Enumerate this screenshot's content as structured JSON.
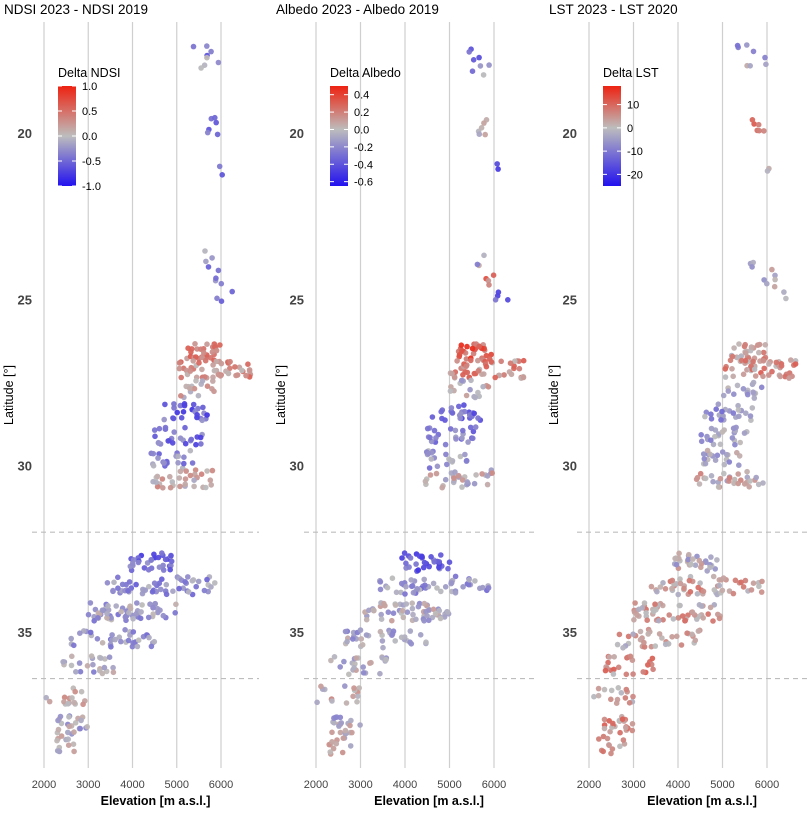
{
  "chart_data": [
    {
      "type": "scatter",
      "title": "NDSI 2023 - NDSI 2019",
      "xlabel": "Elevation [m a.s.l.]",
      "ylabel": "Latitude [°]",
      "x_ticks": [
        "2000",
        "3000",
        "4000",
        "5000",
        "6000"
      ],
      "y_ticks": [
        "20",
        "25",
        "30",
        "35"
      ],
      "xlim": [
        1900,
        6800
      ],
      "ylim_reversed": [
        16.5,
        39.0
      ],
      "reference_lines_latitude": [
        32.0,
        36.4
      ],
      "legend": {
        "title": "Delta NDSI",
        "placement": "top-left",
        "labels": [
          "1.0",
          "0.5",
          "0.0",
          "-0.5",
          "-1.0"
        ],
        "label_values": [
          1.0,
          0.5,
          0.0,
          -0.5,
          -1.0
        ],
        "range": [
          -1.0,
          1.0
        ]
      },
      "colorscale": [
        "#2211ee",
        "#bdbdbd",
        "#ee2211"
      ],
      "clusters": [
        {
          "lat": 17.6,
          "elev_min": 5300,
          "elev_max": 5800,
          "mean": -0.5,
          "n": 4
        },
        {
          "lat": 18.0,
          "elev_min": 5500,
          "elev_max": 6000,
          "mean": -0.1,
          "n": 4
        },
        {
          "lat": 19.8,
          "elev_min": 5650,
          "elev_max": 5950,
          "mean": -0.6,
          "n": 6
        },
        {
          "lat": 21.2,
          "elev_min": 5950,
          "elev_max": 6100,
          "mean": -0.6,
          "n": 2
        },
        {
          "lat": 23.8,
          "elev_min": 5600,
          "elev_max": 5800,
          "mean": -0.3,
          "n": 3
        },
        {
          "lat": 24.3,
          "elev_min": 5700,
          "elev_max": 6200,
          "mean": -0.3,
          "n": 4
        },
        {
          "lat": 24.8,
          "elev_min": 5900,
          "elev_max": 6450,
          "mean": -0.4,
          "n": 4
        },
        {
          "lat": 26.6,
          "elev_min": 5200,
          "elev_max": 6000,
          "mean": 0.45,
          "n": 30
        },
        {
          "lat": 27.1,
          "elev_min": 5000,
          "elev_max": 6700,
          "mean": 0.3,
          "n": 48
        },
        {
          "lat": 27.7,
          "elev_min": 5000,
          "elev_max": 5900,
          "mean": 0.1,
          "n": 16
        },
        {
          "lat": 28.4,
          "elev_min": 4600,
          "elev_max": 5700,
          "mean": -0.5,
          "n": 24
        },
        {
          "lat": 29.1,
          "elev_min": 4500,
          "elev_max": 5600,
          "mean": -0.5,
          "n": 24
        },
        {
          "lat": 29.8,
          "elev_min": 4400,
          "elev_max": 5400,
          "mean": -0.3,
          "n": 20
        },
        {
          "lat": 30.4,
          "elev_min": 4400,
          "elev_max": 6000,
          "mean": 0.15,
          "n": 32
        },
        {
          "lat": 32.9,
          "elev_min": 3900,
          "elev_max": 5000,
          "mean": -0.5,
          "n": 32
        },
        {
          "lat": 33.6,
          "elev_min": 3400,
          "elev_max": 5900,
          "mean": -0.3,
          "n": 56
        },
        {
          "lat": 34.4,
          "elev_min": 3000,
          "elev_max": 5000,
          "mean": -0.15,
          "n": 60
        },
        {
          "lat": 35.2,
          "elev_min": 2600,
          "elev_max": 4500,
          "mean": -0.2,
          "n": 36
        },
        {
          "lat": 36.0,
          "elev_min": 2300,
          "elev_max": 3600,
          "mean": -0.1,
          "n": 24
        },
        {
          "lat": 36.9,
          "elev_min": 2000,
          "elev_max": 3000,
          "mean": 0.05,
          "n": 16
        },
        {
          "lat": 37.8,
          "elev_min": 2300,
          "elev_max": 3000,
          "mean": -0.1,
          "n": 22
        },
        {
          "lat": 38.4,
          "elev_min": 2200,
          "elev_max": 2800,
          "mean": 0.0,
          "n": 12
        }
      ]
    },
    {
      "type": "scatter",
      "title": "Albedo 2023 - Albedo 2019",
      "xlabel": "Elevation [m a.s.l.]",
      "ylabel": "Latitude [°]",
      "x_ticks": [
        "2000",
        "3000",
        "4000",
        "5000",
        "6000"
      ],
      "y_ticks": [
        "20",
        "25",
        "30",
        "35"
      ],
      "xlim": [
        1900,
        6800
      ],
      "ylim_reversed": [
        16.5,
        39.0
      ],
      "reference_lines_latitude": [
        32.0,
        36.4
      ],
      "legend": {
        "title": "Delta Albedo",
        "placement": "top-left",
        "labels": [
          "0.4",
          "0.2",
          "0.0",
          "-0.2",
          "-0.4",
          "-0.6"
        ],
        "label_values": [
          0.4,
          0.2,
          0.0,
          -0.2,
          -0.4,
          -0.6
        ],
        "range": [
          -0.65,
          0.5
        ]
      },
      "colorscale": [
        "#2211ee",
        "#bdbdbd",
        "#ee2211"
      ],
      "clusters": [
        {
          "lat": 17.6,
          "elev_min": 5300,
          "elev_max": 5800,
          "mean": -0.3,
          "n": 4
        },
        {
          "lat": 18.0,
          "elev_min": 5500,
          "elev_max": 6000,
          "mean": -0.15,
          "n": 4
        },
        {
          "lat": 19.8,
          "elev_min": 5650,
          "elev_max": 5950,
          "mean": 0.0,
          "n": 6
        },
        {
          "lat": 21.2,
          "elev_min": 5950,
          "elev_max": 6100,
          "mean": -0.35,
          "n": 2
        },
        {
          "lat": 23.8,
          "elev_min": 5600,
          "elev_max": 5800,
          "mean": -0.1,
          "n": 3
        },
        {
          "lat": 24.3,
          "elev_min": 5700,
          "elev_max": 6200,
          "mean": 0.2,
          "n": 4
        },
        {
          "lat": 24.8,
          "elev_min": 5900,
          "elev_max": 6450,
          "mean": -0.4,
          "n": 4
        },
        {
          "lat": 26.6,
          "elev_min": 5200,
          "elev_max": 6000,
          "mean": 0.3,
          "n": 30
        },
        {
          "lat": 27.1,
          "elev_min": 5000,
          "elev_max": 6700,
          "mean": 0.15,
          "n": 48
        },
        {
          "lat": 27.7,
          "elev_min": 5000,
          "elev_max": 5900,
          "mean": 0.0,
          "n": 16
        },
        {
          "lat": 28.4,
          "elev_min": 4600,
          "elev_max": 5700,
          "mean": -0.3,
          "n": 24
        },
        {
          "lat": 29.1,
          "elev_min": 4500,
          "elev_max": 5600,
          "mean": -0.25,
          "n": 24
        },
        {
          "lat": 29.8,
          "elev_min": 4400,
          "elev_max": 5400,
          "mean": -0.15,
          "n": 20
        },
        {
          "lat": 30.4,
          "elev_min": 4400,
          "elev_max": 6000,
          "mean": 0.0,
          "n": 32
        },
        {
          "lat": 32.9,
          "elev_min": 3900,
          "elev_max": 5000,
          "mean": -0.35,
          "n": 32
        },
        {
          "lat": 33.6,
          "elev_min": 3400,
          "elev_max": 5900,
          "mean": -0.15,
          "n": 56
        },
        {
          "lat": 34.4,
          "elev_min": 3000,
          "elev_max": 5000,
          "mean": -0.05,
          "n": 60
        },
        {
          "lat": 35.2,
          "elev_min": 2600,
          "elev_max": 4500,
          "mean": -0.1,
          "n": 36
        },
        {
          "lat": 36.0,
          "elev_min": 2300,
          "elev_max": 3600,
          "mean": -0.05,
          "n": 24
        },
        {
          "lat": 36.9,
          "elev_min": 2000,
          "elev_max": 3000,
          "mean": 0.0,
          "n": 16
        },
        {
          "lat": 37.8,
          "elev_min": 2300,
          "elev_max": 3000,
          "mean": -0.05,
          "n": 22
        },
        {
          "lat": 38.4,
          "elev_min": 2200,
          "elev_max": 2800,
          "mean": 0.0,
          "n": 12
        }
      ]
    },
    {
      "type": "scatter",
      "title": "LST 2023 - LST 2020",
      "xlabel": "Elevation [m a.s.l.]",
      "ylabel": "Latitude [°]",
      "x_ticks": [
        "2000",
        "3000",
        "4000",
        "5000",
        "6000"
      ],
      "y_ticks": [
        "20",
        "25",
        "30",
        "35"
      ],
      "xlim": [
        1900,
        6800
      ],
      "ylim_reversed": [
        16.5,
        39.0
      ],
      "reference_lines_latitude": [
        32.0,
        36.4
      ],
      "legend": {
        "title": "Delta LST",
        "placement": "top-left",
        "labels": [
          "10",
          "0",
          "-10",
          "-20"
        ],
        "label_values": [
          10,
          0,
          -10,
          -20
        ],
        "range": [
          -25,
          18
        ]
      },
      "colorscale": [
        "#2211ee",
        "#bdbdbd",
        "#ee2211"
      ],
      "clusters": [
        {
          "lat": 17.6,
          "elev_min": 5300,
          "elev_max": 5800,
          "mean": -8,
          "n": 4
        },
        {
          "lat": 18.0,
          "elev_min": 5500,
          "elev_max": 6000,
          "mean": -3,
          "n": 4
        },
        {
          "lat": 19.8,
          "elev_min": 5650,
          "elev_max": 5950,
          "mean": 10,
          "n": 6
        },
        {
          "lat": 21.2,
          "elev_min": 5950,
          "elev_max": 6100,
          "mean": -3,
          "n": 2
        },
        {
          "lat": 23.8,
          "elev_min": 5600,
          "elev_max": 5800,
          "mean": -2,
          "n": 3
        },
        {
          "lat": 24.3,
          "elev_min": 5700,
          "elev_max": 6200,
          "mean": -2,
          "n": 4
        },
        {
          "lat": 24.8,
          "elev_min": 5900,
          "elev_max": 6450,
          "mean": -1,
          "n": 4
        },
        {
          "lat": 26.6,
          "elev_min": 5200,
          "elev_max": 6000,
          "mean": 4,
          "n": 30
        },
        {
          "lat": 27.1,
          "elev_min": 5000,
          "elev_max": 6700,
          "mean": 5,
          "n": 48
        },
        {
          "lat": 27.7,
          "elev_min": 5000,
          "elev_max": 5900,
          "mean": -2,
          "n": 16
        },
        {
          "lat": 28.4,
          "elev_min": 4600,
          "elev_max": 5700,
          "mean": -6,
          "n": 24
        },
        {
          "lat": 29.1,
          "elev_min": 4500,
          "elev_max": 5600,
          "mean": -5,
          "n": 24
        },
        {
          "lat": 29.8,
          "elev_min": 4400,
          "elev_max": 5400,
          "mean": -3,
          "n": 20
        },
        {
          "lat": 30.4,
          "elev_min": 4400,
          "elev_max": 6000,
          "mean": 1,
          "n": 32
        },
        {
          "lat": 32.9,
          "elev_min": 3900,
          "elev_max": 5000,
          "mean": -1,
          "n": 32
        },
        {
          "lat": 33.6,
          "elev_min": 3400,
          "elev_max": 5900,
          "mean": 3,
          "n": 56
        },
        {
          "lat": 34.4,
          "elev_min": 3000,
          "elev_max": 5000,
          "mean": 3,
          "n": 60
        },
        {
          "lat": 35.2,
          "elev_min": 2600,
          "elev_max": 4500,
          "mean": 2,
          "n": 36
        },
        {
          "lat": 36.0,
          "elev_min": 2300,
          "elev_max": 3600,
          "mean": 5,
          "n": 24
        },
        {
          "lat": 36.9,
          "elev_min": 2000,
          "elev_max": 3000,
          "mean": 2,
          "n": 16
        },
        {
          "lat": 37.8,
          "elev_min": 2300,
          "elev_max": 3000,
          "mean": 6,
          "n": 22
        },
        {
          "lat": 38.4,
          "elev_min": 2200,
          "elev_max": 2800,
          "mean": 6,
          "n": 12
        }
      ]
    }
  ]
}
